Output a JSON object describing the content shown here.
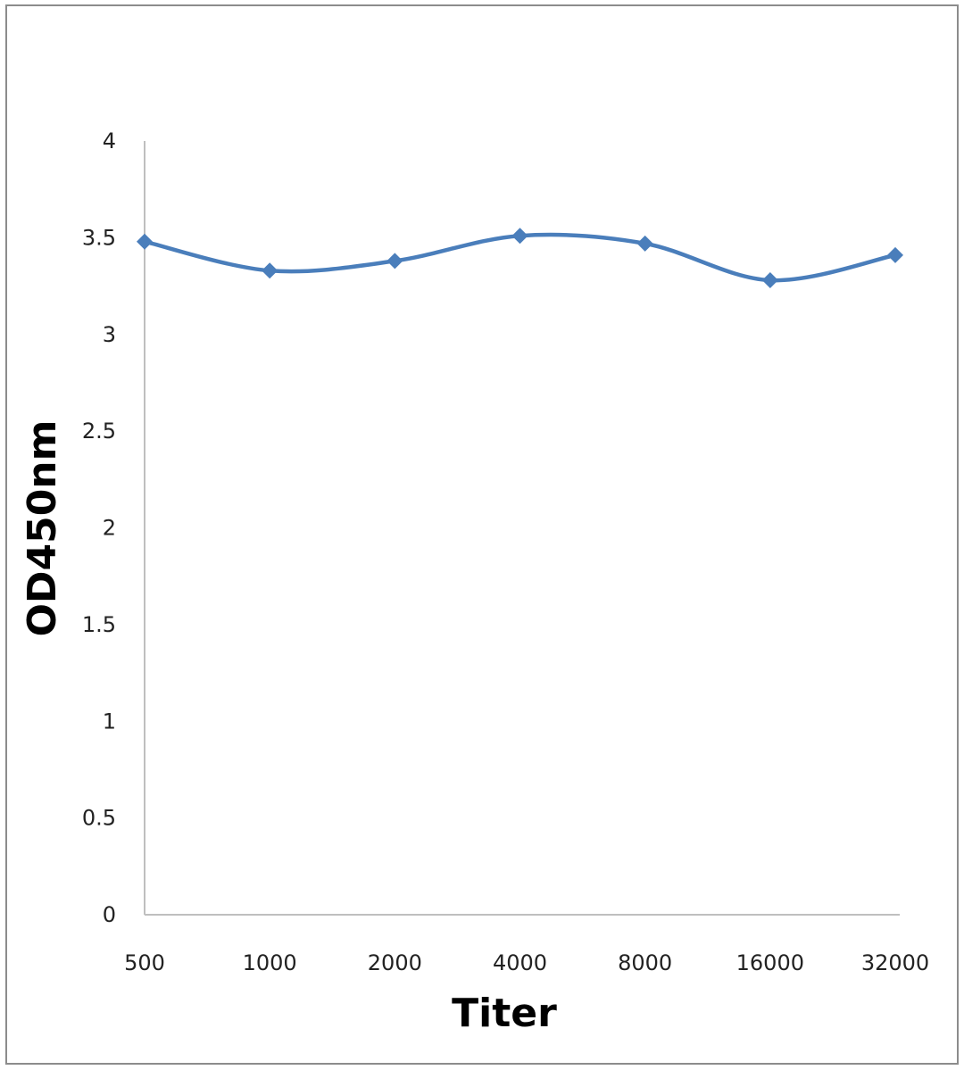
{
  "chart_data": {
    "type": "line",
    "title": "",
    "xlabel": "Titer",
    "ylabel": "OD450nm",
    "categories": [
      "500",
      "1000",
      "2000",
      "4000",
      "8000",
      "16000",
      "32000"
    ],
    "series": [
      {
        "values": [
          3.48,
          3.33,
          3.38,
          3.51,
          3.47,
          3.28,
          3.41
        ],
        "color": "#4a7ebb",
        "marker": "diamond"
      }
    ],
    "ylim": [
      0,
      4
    ],
    "yticks": [
      "0",
      "0.5",
      "1",
      "1.5",
      "2",
      "2.5",
      "3",
      "3.5",
      "4"
    ],
    "grid": false,
    "smooth": true
  }
}
